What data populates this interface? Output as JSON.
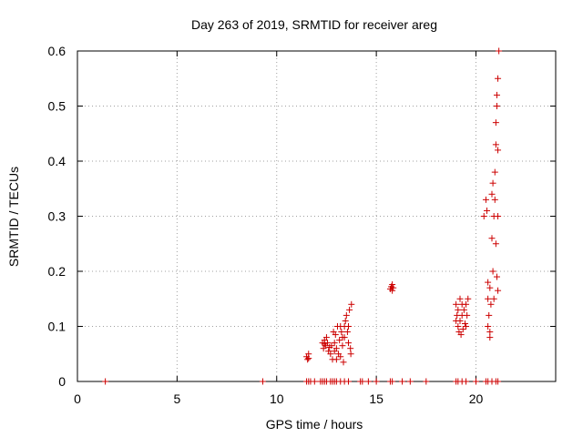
{
  "chart_data": {
    "type": "scatter",
    "title": "Day 263 of 2019, SRMTID for receiver areg",
    "xlabel": "GPS time / hours",
    "ylabel": "SRMTID / TECUs",
    "xlim": [
      0,
      24
    ],
    "ylim": [
      0,
      0.6
    ],
    "xticks": [
      0,
      5,
      10,
      15,
      20
    ],
    "yticks": [
      0,
      0.1,
      0.2,
      0.3,
      0.4,
      0.5,
      0.6
    ],
    "xtick_labels": [
      "0",
      "5",
      "10",
      "15",
      "20"
    ],
    "ytick_labels": [
      "0",
      "0.1",
      "0.2",
      "0.3",
      "0.4",
      "0.5",
      "0.6"
    ],
    "grid": true,
    "marker": "+",
    "color": "#cc0000",
    "series": [
      {
        "name": "SRMTID",
        "points": [
          [
            1.4,
            0
          ],
          [
            9.3,
            0
          ],
          [
            11.5,
            0
          ],
          [
            11.6,
            0
          ],
          [
            11.7,
            0
          ],
          [
            11.9,
            0
          ],
          [
            12.2,
            0
          ],
          [
            12.3,
            0
          ],
          [
            12.4,
            0
          ],
          [
            12.5,
            0
          ],
          [
            12.7,
            0
          ],
          [
            12.8,
            0
          ],
          [
            12.9,
            0
          ],
          [
            13.0,
            0
          ],
          [
            13.2,
            0
          ],
          [
            13.4,
            0
          ],
          [
            13.6,
            0
          ],
          [
            14.2,
            0
          ],
          [
            14.3,
            0
          ],
          [
            14.6,
            0
          ],
          [
            15.0,
            0
          ],
          [
            15.7,
            0
          ],
          [
            15.8,
            0
          ],
          [
            16.3,
            0
          ],
          [
            16.7,
            0
          ],
          [
            17.5,
            0
          ],
          [
            19.0,
            0
          ],
          [
            19.1,
            0
          ],
          [
            19.3,
            0
          ],
          [
            19.5,
            0
          ],
          [
            20.0,
            0
          ],
          [
            20.5,
            0
          ],
          [
            20.6,
            0
          ],
          [
            20.8,
            0
          ],
          [
            21.0,
            0
          ],
          [
            21.1,
            0
          ],
          [
            11.5,
            0.045
          ],
          [
            11.55,
            0.04
          ],
          [
            11.6,
            0.05
          ],
          [
            11.6,
            0.042
          ],
          [
            12.3,
            0.07
          ],
          [
            12.35,
            0.06
          ],
          [
            12.4,
            0.075
          ],
          [
            12.45,
            0.065
          ],
          [
            12.5,
            0.08
          ],
          [
            12.55,
            0.07
          ],
          [
            12.6,
            0.055
          ],
          [
            12.65,
            0.062
          ],
          [
            12.4,
            0.068
          ],
          [
            12.7,
            0.05
          ],
          [
            12.75,
            0.065
          ],
          [
            12.8,
            0.04
          ],
          [
            12.85,
            0.09
          ],
          [
            12.9,
            0.07
          ],
          [
            12.95,
            0.085
          ],
          [
            13.0,
            0.06
          ],
          [
            13.05,
            0.1
          ],
          [
            13.1,
            0.05
          ],
          [
            13.15,
            0.075
          ],
          [
            13.2,
            0.045
          ],
          [
            13.25,
            0.09
          ],
          [
            13.3,
            0.065
          ],
          [
            13.35,
            0.035
          ],
          [
            13.4,
            0.08
          ],
          [
            13.45,
            0.11
          ],
          [
            13.5,
            0.12
          ],
          [
            13.55,
            0.09
          ],
          [
            13.6,
            0.1
          ],
          [
            13.65,
            0.13
          ],
          [
            13.7,
            0.06
          ],
          [
            13.72,
            0.05
          ],
          [
            13.75,
            0.14
          ],
          [
            13.4,
            0.1
          ],
          [
            13.3,
            0.08
          ],
          [
            13.2,
            0.1
          ],
          [
            13.0,
            0.04
          ],
          [
            12.9,
            0.055
          ],
          [
            13.6,
            0.07
          ],
          [
            15.7,
            0.168
          ],
          [
            15.75,
            0.172
          ],
          [
            15.8,
            0.176
          ],
          [
            15.85,
            0.17
          ],
          [
            15.8,
            0.165
          ],
          [
            19.0,
            0.14
          ],
          [
            19.05,
            0.12
          ],
          [
            19.1,
            0.13
          ],
          [
            19.1,
            0.1
          ],
          [
            19.15,
            0.09
          ],
          [
            19.2,
            0.15
          ],
          [
            19.2,
            0.11
          ],
          [
            19.25,
            0.085
          ],
          [
            19.3,
            0.12
          ],
          [
            19.35,
            0.095
          ],
          [
            19.4,
            0.13
          ],
          [
            19.45,
            0.105
          ],
          [
            19.5,
            0.14
          ],
          [
            19.5,
            0.1
          ],
          [
            19.55,
            0.12
          ],
          [
            19.6,
            0.15
          ],
          [
            19.0,
            0.11
          ],
          [
            19.3,
            0.14
          ],
          [
            20.4,
            0.3
          ],
          [
            20.5,
            0.33
          ],
          [
            20.55,
            0.31
          ],
          [
            20.6,
            0.18
          ],
          [
            20.6,
            0.1
          ],
          [
            20.65,
            0.12
          ],
          [
            20.7,
            0.08
          ],
          [
            20.7,
            0.17
          ],
          [
            20.75,
            0.14
          ],
          [
            20.8,
            0.26
          ],
          [
            20.8,
            0.34
          ],
          [
            20.85,
            0.36
          ],
          [
            20.85,
            0.2
          ],
          [
            20.9,
            0.3
          ],
          [
            20.9,
            0.15
          ],
          [
            20.95,
            0.38
          ],
          [
            20.95,
            0.33
          ],
          [
            21.0,
            0.43
          ],
          [
            21.0,
            0.47
          ],
          [
            21.0,
            0.25
          ],
          [
            21.05,
            0.5
          ],
          [
            21.05,
            0.52
          ],
          [
            21.05,
            0.19
          ],
          [
            21.1,
            0.55
          ],
          [
            21.1,
            0.42
          ],
          [
            21.1,
            0.3
          ],
          [
            21.1,
            0.165
          ],
          [
            21.15,
            0.6
          ],
          [
            20.6,
            0.15
          ],
          [
            20.7,
            0.09
          ]
        ]
      }
    ]
  }
}
